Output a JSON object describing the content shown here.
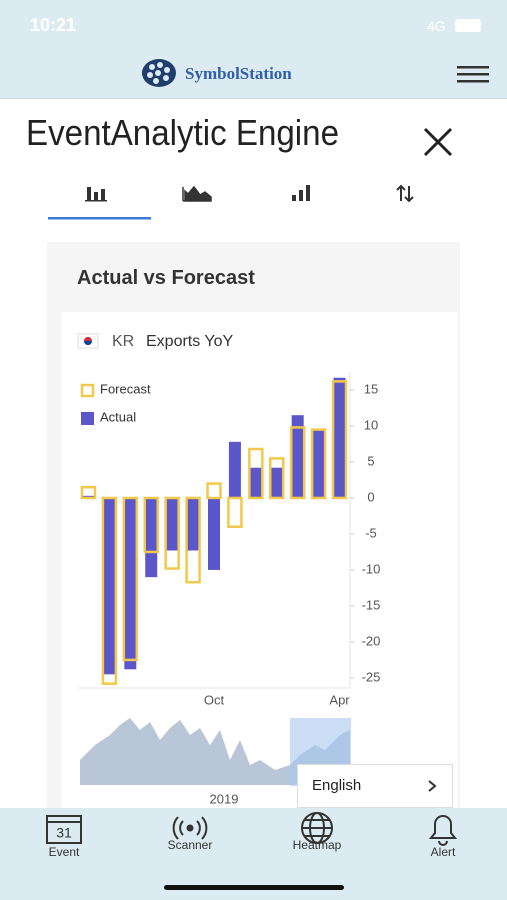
{
  "status_bar": {
    "time": "10:21",
    "network": "4G"
  },
  "header": {
    "brand": "SymbolStation"
  },
  "page": {
    "title": "EventAnalytic Engine"
  },
  "card": {
    "title": "Actual vs Forecast"
  },
  "chart_data": {
    "type": "bar",
    "country": "KR",
    "title": "Exports YoY",
    "categories": [
      null,
      null,
      null,
      null,
      null,
      null,
      "Oct",
      null,
      null,
      null,
      null,
      null,
      "Apr"
    ],
    "series": [
      {
        "name": "Forecast",
        "color": "#f2c94c",
        "style": "outline",
        "values": [
          1.5,
          -25.8,
          -22.5,
          -7.5,
          -9.8,
          -11.7,
          2,
          -4,
          6.8,
          5.5,
          9.8,
          9.5,
          16.2
        ]
      },
      {
        "name": "Actual",
        "color": "#5b56c9",
        "style": "fill",
        "values": [
          0.3,
          -24.5,
          -23.8,
          -11,
          -7.3,
          -7.3,
          -10,
          7.8,
          4.2,
          4.2,
          11.5,
          9.5,
          16.7
        ]
      }
    ],
    "ylim": [
      -26.4,
      17.5
    ],
    "yticks": [
      15,
      10,
      5,
      0,
      -5,
      -10,
      -15,
      -20,
      -25
    ],
    "grid": false,
    "navigator_label": "2019"
  },
  "language_selector": {
    "label": "English"
  },
  "tab_bar": {
    "calendar_day": "31",
    "items": [
      "Event",
      "Scanner",
      "Heatmap",
      "Alert"
    ]
  }
}
